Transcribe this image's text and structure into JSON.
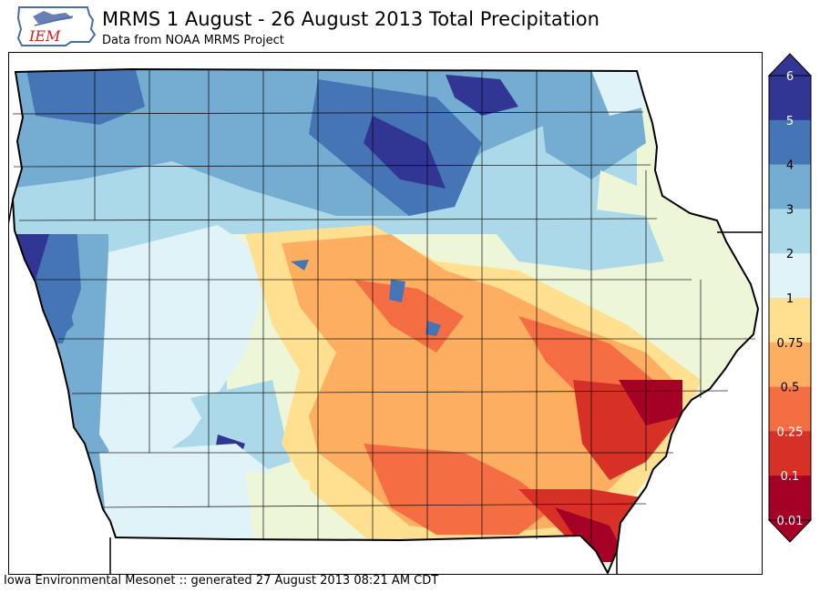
{
  "header": {
    "logo_text": "IEM",
    "title": "MRMS 1 August - 26 August 2013 Total Precipitation",
    "subtitle": "Data from NOAA MRMS Project"
  },
  "footer": {
    "text": "Iowa Environmental Mesonet :: generated 27 August 2013 08:21 AM CDT"
  },
  "legend": {
    "levels": [
      {
        "label": "6",
        "color": "#313695"
      },
      {
        "label": "5",
        "color": "#4575b4"
      },
      {
        "label": "4",
        "color": "#74add1"
      },
      {
        "label": "3",
        "color": "#abd9e9"
      },
      {
        "label": "2",
        "color": "#e0f3f8"
      },
      {
        "label": "1",
        "color": "#fee090"
      },
      {
        "label": "0.75",
        "color": "#fdae61"
      },
      {
        "label": "0.5",
        "color": "#f46d43"
      },
      {
        "label": "0.25",
        "color": "#d73027"
      },
      {
        "label": "0.1",
        "color": "#a50026"
      },
      {
        "label": "0.01",
        "color": "#a50026"
      }
    ],
    "top_color": "#313695",
    "bottom_color": "#a50026"
  },
  "map": {
    "region": "Iowa",
    "colors": {
      "darkblue": "#313695",
      "blue": "#4575b4",
      "medblue": "#74add1",
      "lightblue": "#abd9e9",
      "paleblue": "#e0f3f8",
      "pale": "#f4f9d9",
      "yellow": "#fee090",
      "orange": "#fdae61",
      "red": "#f46d43",
      "darkred": "#d73027",
      "deepred": "#a50026"
    }
  }
}
